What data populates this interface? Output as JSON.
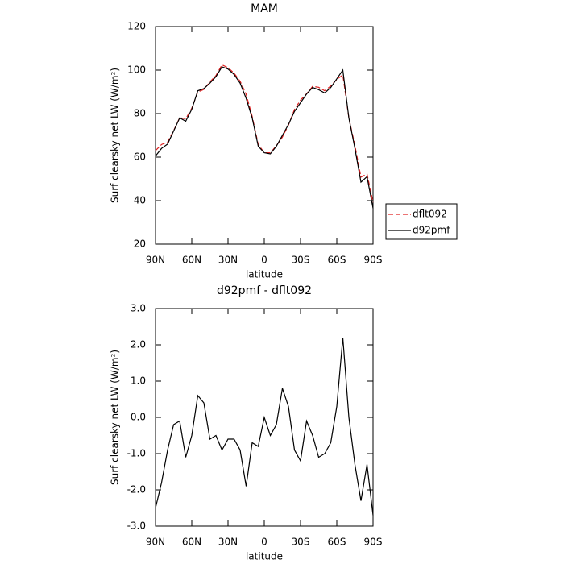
{
  "chart_data": [
    {
      "type": "line",
      "title": "MAM",
      "xlabel": "latitude",
      "ylabel": "Surf clearsky net LW (W/m²)",
      "x": [
        90,
        85,
        80,
        75,
        70,
        65,
        60,
        55,
        50,
        45,
        40,
        35,
        30,
        25,
        20,
        15,
        10,
        5,
        0,
        -5,
        -10,
        -15,
        -20,
        -25,
        -30,
        -35,
        -40,
        -45,
        -50,
        -55,
        -60,
        -65,
        -70,
        -75,
        -80,
        -85,
        -90
      ],
      "series": [
        {
          "name": "dflt092",
          "color": "#e02020",
          "style": "dashed",
          "values": [
            63,
            65.8,
            66.9,
            72.2,
            78.1,
            77.6,
            82.5,
            89.9,
            91.1,
            94.6,
            97.5,
            102.4,
            101.1,
            98.6,
            94.9,
            88.9,
            78.7,
            65.8,
            62,
            62,
            65.2,
            69.2,
            74.7,
            81.9,
            86.2,
            89.1,
            92.5,
            92.1,
            90.5,
            92.7,
            95.7,
            97.8,
            78,
            65.3,
            50.8,
            52.3,
            39.2
          ]
        },
        {
          "name": "d92pmf",
          "color": "#000000",
          "style": "solid",
          "values": [
            60.5,
            64,
            66,
            72,
            78,
            76.5,
            82,
            90.5,
            91.5,
            94,
            97,
            101.5,
            100.5,
            98,
            94,
            87,
            78,
            65,
            62,
            61.5,
            65,
            70,
            75,
            81,
            85,
            89,
            92,
            91,
            89.5,
            92,
            96,
            100,
            78,
            64,
            48.5,
            51,
            36.5
          ]
        }
      ],
      "xlim": [
        90,
        -90
      ],
      "xticks": [
        {
          "value": 90,
          "label": "90N"
        },
        {
          "value": 60,
          "label": "60N"
        },
        {
          "value": 30,
          "label": "30N"
        },
        0,
        {
          "value": -30,
          "label": "30S"
        },
        {
          "value": -60,
          "label": "60S"
        },
        {
          "value": -90,
          "label": "90S"
        }
      ],
      "ylim": [
        20,
        120
      ],
      "yticks": [
        20,
        40,
        60,
        80,
        100,
        120
      ],
      "legend": "outside right"
    },
    {
      "type": "line",
      "title": "d92pmf - dflt092",
      "xlabel": "latitude",
      "ylabel": "Surf clearsky net LW (W/m²)",
      "x": [
        90,
        85,
        80,
        75,
        70,
        65,
        60,
        55,
        50,
        45,
        40,
        35,
        30,
        25,
        20,
        15,
        10,
        5,
        0,
        -5,
        -10,
        -15,
        -20,
        -25,
        -30,
        -35,
        -40,
        -45,
        -50,
        -55,
        -60,
        -65,
        -70,
        -75,
        -80,
        -85,
        -90
      ],
      "series": [
        {
          "name": "d92pmf - dflt092",
          "color": "#000000",
          "style": "solid",
          "values": [
            -2.5,
            -1.8,
            -0.9,
            -0.2,
            -0.1,
            -1.1,
            -0.5,
            0.6,
            0.4,
            -0.6,
            -0.5,
            -0.9,
            -0.6,
            -0.6,
            -0.9,
            -1.9,
            -0.7,
            -0.8,
            0.0,
            -0.5,
            -0.2,
            0.8,
            0.3,
            -0.9,
            -1.2,
            -0.1,
            -0.5,
            -1.1,
            -1.0,
            -0.7,
            0.3,
            2.2,
            0.0,
            -1.3,
            -2.3,
            -1.3,
            -2.7
          ]
        }
      ],
      "xlim": [
        90,
        -90
      ],
      "xticks": [
        {
          "value": 90,
          "label": "90N"
        },
        {
          "value": 60,
          "label": "60N"
        },
        {
          "value": 30,
          "label": "30N"
        },
        0,
        {
          "value": -30,
          "label": "30S"
        },
        {
          "value": -60,
          "label": "60S"
        },
        {
          "value": -90,
          "label": "90S"
        }
      ],
      "ylim": [
        -3,
        3
      ],
      "yticks": [
        {
          "value": -3,
          "label": "-3.0"
        },
        {
          "value": -2,
          "label": "-2.0"
        },
        {
          "value": -1,
          "label": "-1.0"
        },
        {
          "value": 0,
          "label": "0.0"
        },
        {
          "value": 1,
          "label": "1.0"
        },
        {
          "value": 2,
          "label": "2.0"
        },
        {
          "value": 3,
          "label": "3.0"
        }
      ]
    }
  ]
}
